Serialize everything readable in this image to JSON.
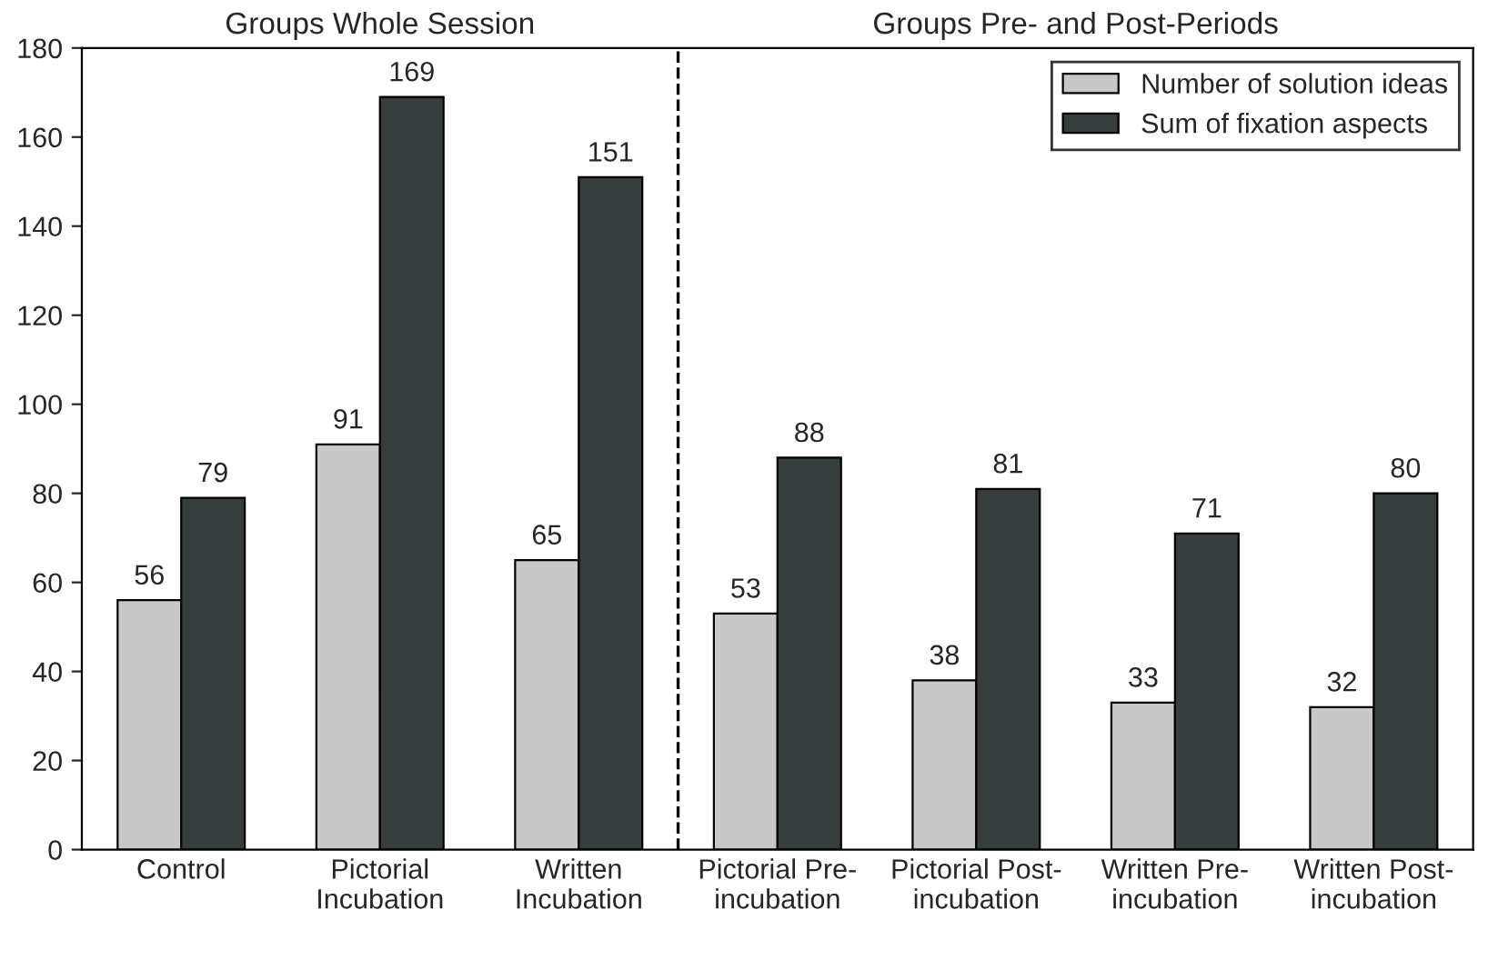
{
  "chart_data": {
    "type": "bar",
    "categories": [
      "Control",
      "Pictorial\nIncubation",
      "Written\nIncubation",
      "Pictorial Pre-\nincubation",
      "Pictorial Post-\nincubation",
      "Written Pre-\nincubation",
      "Written Post-\nincubation"
    ],
    "series": [
      {
        "name": "Number of solution ideas",
        "color": "#c8c8c8",
        "values": [
          56,
          91,
          65,
          53,
          38,
          33,
          32
        ]
      },
      {
        "name": "Sum of fixation aspects",
        "color": "#353d3d",
        "values": [
          79,
          169,
          151,
          88,
          81,
          71,
          80
        ]
      }
    ],
    "ylim": [
      0,
      180
    ],
    "yticks": [
      0,
      20,
      40,
      60,
      80,
      100,
      120,
      140,
      160,
      180
    ],
    "data_labels": true,
    "legend": "top right",
    "grid": false,
    "annotations": [
      "Groups Whole Session",
      "Groups Pre- and Post-Periods"
    ]
  }
}
